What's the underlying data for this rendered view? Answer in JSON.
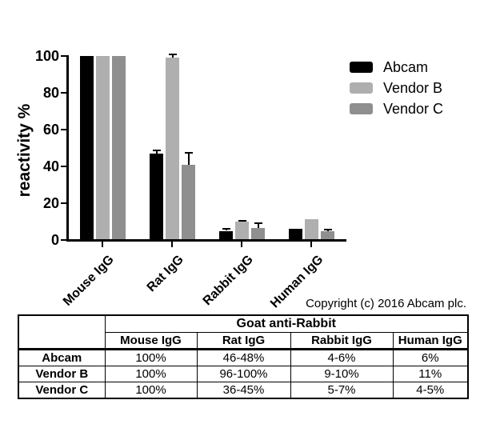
{
  "chart_data": {
    "type": "bar",
    "title": "",
    "ylabel": "reactivity %",
    "xlabel": "",
    "categories": [
      "Mouse IgG",
      "Rat IgG",
      "Rabbit IgG",
      "Human IgG"
    ],
    "series": [
      {
        "name": "Abcam",
        "color": "#000000",
        "values": [
          100,
          47,
          5,
          6.3
        ],
        "errors": [
          0,
          1.5,
          1.0,
          0
        ]
      },
      {
        "name": "Vendor B",
        "color": "#afafaf",
        "values": [
          100,
          99,
          9.8,
          11.5
        ],
        "errors": [
          0,
          1.8,
          0.7,
          0
        ]
      },
      {
        "name": "Vendor C",
        "color": "#8f8f8f",
        "values": [
          100,
          41,
          6.5,
          4.8
        ],
        "errors": [
          0,
          6.5,
          2.7,
          0.8
        ]
      }
    ],
    "ylim": [
      0,
      100
    ],
    "yticks": [
      0,
      20,
      40,
      60,
      80,
      100
    ],
    "legend_position": "top-right",
    "grid": false,
    "error_bar_color": "#000000"
  },
  "copyright": "Copyright (c) 2016 Abcam plc.",
  "table": {
    "group_header": "Goat anti-Rabbit",
    "col_headers": [
      "Mouse IgG",
      "Rat IgG",
      "Rabbit IgG",
      "Human IgG"
    ],
    "rows": [
      {
        "label": "Abcam",
        "cells": [
          "100%",
          "46-48%",
          "4-6%",
          "6%"
        ]
      },
      {
        "label": "Vendor B",
        "cells": [
          "100%",
          "96-100%",
          "9-10%",
          "11%"
        ]
      },
      {
        "label": "Vendor C",
        "cells": [
          "100%",
          "36-45%",
          "5-7%",
          "4-5%"
        ]
      }
    ]
  }
}
